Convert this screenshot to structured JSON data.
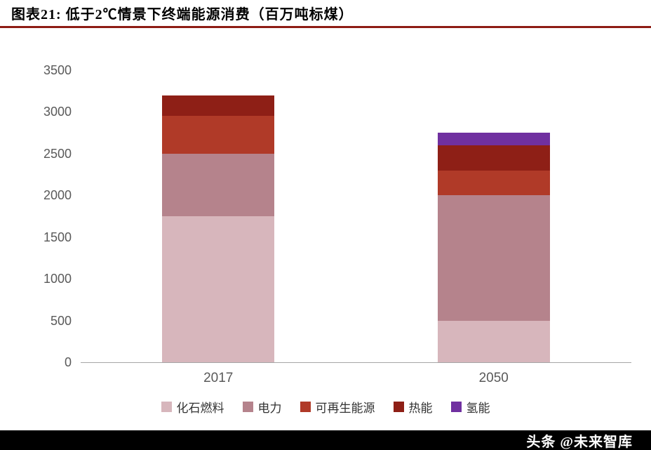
{
  "header": {
    "title": "图表21:  低于2℃情景下终端能源消费（百万吨标煤）"
  },
  "colors": {
    "header_rule": "#8e1c14",
    "axis_text": "#595959",
    "watermark_bg": "#000000",
    "watermark_text": "#ffffff"
  },
  "chart_data": {
    "type": "bar",
    "stacked": true,
    "title": "低于2℃情景下终端能源消费（百万吨标煤）",
    "unit": "百万吨标煤",
    "categories": [
      "2017",
      "2050"
    ],
    "series": [
      {
        "name": "化石燃料",
        "color": "#d7b6bc",
        "values": [
          1750,
          500
        ]
      },
      {
        "name": "电力",
        "color": "#b5838c",
        "values": [
          750,
          1500
        ]
      },
      {
        "name": "可再生能源",
        "color": "#b03a28",
        "values": [
          450,
          300
        ]
      },
      {
        "name": "热能",
        "color": "#8e1f16",
        "values": [
          250,
          300
        ]
      },
      {
        "name": "氢能",
        "color": "#7030a0",
        "values": [
          0,
          150
        ]
      }
    ],
    "totals": [
      3200,
      2750
    ],
    "ylim": [
      0,
      3500
    ],
    "ytick_step": 500,
    "ytick_labels": [
      "0",
      "500",
      "1000",
      "1500",
      "2000",
      "2500",
      "3000",
      "3500"
    ],
    "grid": false,
    "legend_position": "bottom"
  },
  "footer": {
    "watermark": "头条 @未来智库"
  }
}
